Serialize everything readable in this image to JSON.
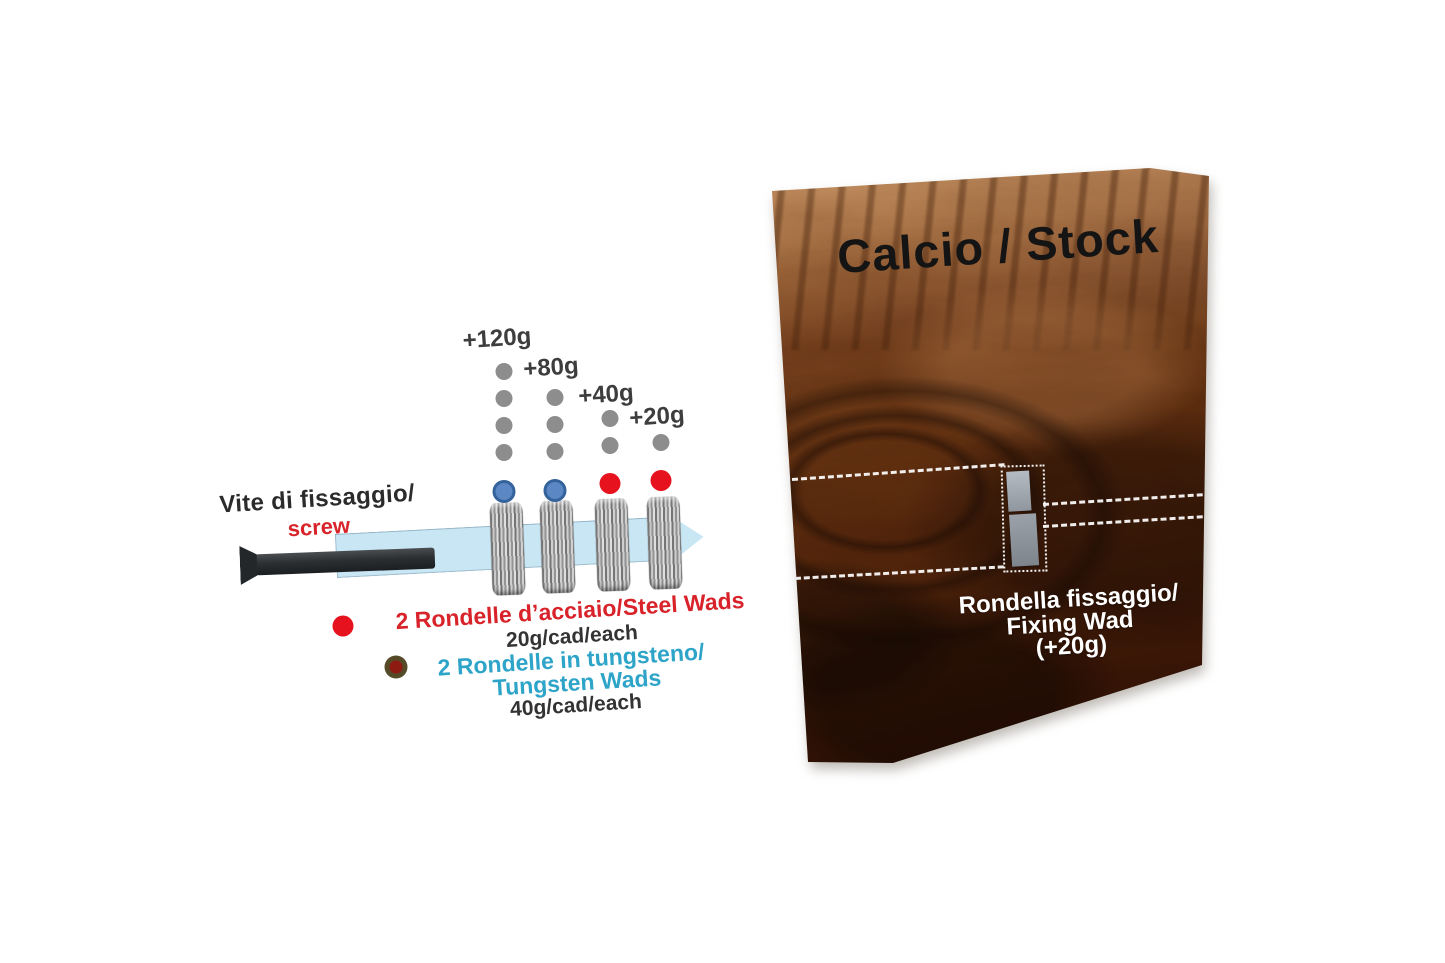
{
  "screw": {
    "label_it": "Vite di fissaggio/",
    "label_en": "screw"
  },
  "weight_columns": [
    {
      "label": "+120g",
      "leader_dots": 4,
      "wad_type": "tungsten",
      "dot_color": "blue"
    },
    {
      "label": "+80g",
      "leader_dots": 3,
      "wad_type": "tungsten",
      "dot_color": "blue"
    },
    {
      "label": "+40g",
      "leader_dots": 2,
      "wad_type": "steel",
      "dot_color": "red"
    },
    {
      "label": "+20g",
      "leader_dots": 1,
      "wad_type": "steel",
      "dot_color": "red"
    }
  ],
  "legend": {
    "steel": {
      "label": "2 Rondelle d’acciaio/Steel Wads",
      "weight": "20g/cad/each"
    },
    "tungsten": {
      "label_line1": "2 Rondelle in tungsteno/",
      "label_line2": "Tungsten Wads",
      "weight": "40g/cad/each"
    }
  },
  "panel": {
    "title": "Calcio / Stock",
    "caption_line1": "Rondella fissaggio/",
    "caption_line2": "Fixing Wad",
    "caption_line3": "(+20g)"
  },
  "colors": {
    "red_dot": "#e6131f",
    "red_text": "#d8232a",
    "blue_dot": "#5b87c5",
    "blue_dot_ring": "#34639c",
    "gray_dot": "#8d8d8d",
    "teal_text": "#2da4c8",
    "arrow_blue": "#c9e6f4",
    "label_ink": "#3d3d3d",
    "tungsten_dot_outer": "#544a28",
    "tungsten_dot_inner": "#8e1b12"
  }
}
